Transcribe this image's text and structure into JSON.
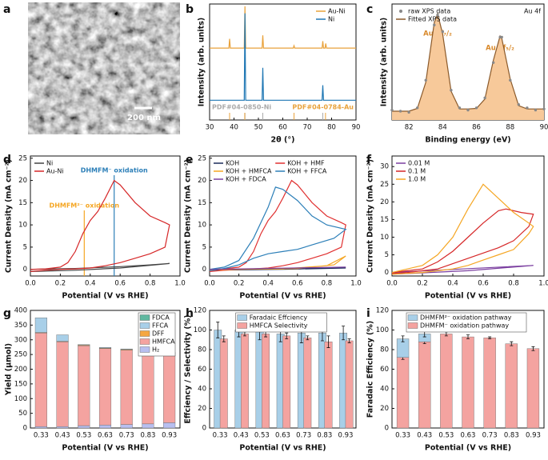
{
  "chart_data": [
    {
      "panel": "a",
      "type": "image",
      "scale_bar": "200 nm"
    },
    {
      "panel": "b",
      "type": "line",
      "xlabel": "2θ (°)",
      "ylabel": "Intensity (arb. units)",
      "xlim": [
        30,
        90
      ],
      "xticks": [
        30,
        40,
        50,
        60,
        70,
        80,
        90
      ],
      "ylim": [
        0,
        100
      ],
      "legend": "upper right",
      "series": [
        {
          "name": "Au-Ni",
          "color": "#e9a23b",
          "x": [
            30,
            37.9,
            38.2,
            38.5,
            44.2,
            44.5,
            44.8,
            51.5,
            51.8,
            52.1,
            64.3,
            64.6,
            64.9,
            76.1,
            76.4,
            76.7,
            77.3,
            77.6,
            77.9,
            90
          ],
          "values": [
            62,
            62,
            70,
            62,
            62,
            98,
            62,
            62,
            73,
            62,
            62,
            64,
            62,
            62,
            68,
            62,
            62,
            66,
            62,
            62
          ]
        },
        {
          "name": "Ni",
          "color": "#1f77b4",
          "x": [
            30,
            44.2,
            44.5,
            44.8,
            51.5,
            51.8,
            52.1,
            76.1,
            76.4,
            76.7,
            90
          ],
          "values": [
            17,
            17,
            92,
            17,
            17,
            45,
            17,
            17,
            30,
            17,
            17
          ]
        }
      ],
      "references": [
        {
          "label": "PDF#04-0850-Ni",
          "color": "#aaaaaa",
          "positions": [
            44.5,
            51.8,
            76.4
          ]
        },
        {
          "label": "PDF#04-0784-Au",
          "color": "#e9a23b",
          "positions": [
            38.2,
            44.4,
            64.6,
            77.5
          ]
        }
      ]
    },
    {
      "panel": "c",
      "type": "line",
      "xlabel": "Binding energy (eV)",
      "ylabel": "Intensity (arb. units)",
      "xlim": [
        81,
        90
      ],
      "xticks": [
        82,
        84,
        86,
        88,
        90
      ],
      "ylim": [
        0,
        105
      ],
      "legend": "upper left",
      "x": [
        81,
        81.5,
        82,
        82.5,
        83,
        83.5,
        83.7,
        84,
        84.5,
        85,
        85.5,
        86,
        86.5,
        87,
        87.4,
        87.5,
        88,
        88.5,
        89,
        89.5,
        90
      ],
      "series": [
        {
          "name": "raw XPS data",
          "type": "scatter",
          "color": "#888888",
          "values": [
            9,
            8,
            7,
            11,
            36,
            86,
            95,
            80,
            27,
            11,
            9,
            11,
            20,
            52,
            75,
            75,
            36,
            14,
            11,
            9,
            10
          ]
        },
        {
          "name": "Fitted XPS data",
          "color": "#8b5a2b",
          "fill": "#f7c99a",
          "values": [
            8,
            8,
            8,
            10.5,
            34,
            88,
            96,
            78,
            26,
            10,
            10,
            10.5,
            19,
            54,
            76,
            74,
            37,
            13,
            10,
            10,
            10
          ]
        }
      ],
      "annotations": [
        "Au 4f",
        "Au 4f₇/₂",
        "Au 4f₅/₂"
      ]
    },
    {
      "panel": "d",
      "type": "line",
      "xlabel": "Potential (V vs RHE)",
      "ylabel": "Current Density (mA cm⁻²)",
      "xlim": [
        0,
        1
      ],
      "xticks": [
        {
          "value": 0,
          "label": "0.0"
        },
        0.2,
        0.4,
        0.6,
        0.8,
        {
          "value": 1,
          "label": "1.0"
        }
      ],
      "ylim": [
        -1.5,
        25.5
      ],
      "yticks": [
        0,
        5,
        10,
        15,
        20,
        25
      ],
      "legend": "upper left",
      "series": [
        {
          "name": "Ni",
          "color": "#444444",
          "x": [
            0,
            0.3,
            0.6,
            0.8,
            0.93,
            0.8,
            0.6,
            0.3,
            0
          ],
          "values": [
            0,
            0.2,
            0.6,
            1,
            1.3,
            0.9,
            0.3,
            -0.2,
            -0.5
          ]
        },
        {
          "name": "Au-Ni",
          "color": "#d62728",
          "x": [
            0,
            0.1,
            0.2,
            0.25,
            0.3,
            0.35,
            0.4,
            0.45,
            0.5,
            0.56,
            0.6,
            0.7,
            0.8,
            0.9,
            0.93,
            0.9,
            0.8,
            0.7,
            0.6,
            0.5,
            0.4,
            0.3,
            0.2,
            0.1,
            0
          ],
          "values": [
            0,
            0.1,
            0.5,
            1.5,
            4,
            8,
            11,
            13,
            16,
            20,
            19,
            15,
            12,
            10.5,
            10,
            5,
            3.5,
            2.5,
            1.5,
            0.8,
            0.3,
            0.1,
            0,
            -0.2,
            -0.5
          ]
        }
      ],
      "vlines": [
        {
          "text": "DHMFM²⁻ oxidation",
          "x": 0.36,
          "color": "#f5a623"
        },
        {
          "text": "DHMFM⁻ oxidation",
          "x": 0.56,
          "color": "#2c7fb8"
        }
      ]
    },
    {
      "panel": "e",
      "type": "line",
      "xlabel": "Potential (V vs RHE)",
      "ylabel": "Current Density (mA cm⁻²)",
      "xlim": [
        0,
        1
      ],
      "xticks": [
        {
          "value": 0,
          "label": "0.0"
        },
        0.2,
        0.4,
        0.6,
        0.8,
        {
          "value": 1,
          "label": "1.0"
        }
      ],
      "ylim": [
        -1.5,
        25.5
      ],
      "yticks": [
        0,
        5,
        10,
        15,
        20,
        25
      ],
      "legend": "upper left",
      "legend_columns": 2,
      "series": [
        {
          "name": "KOH",
          "color": "#1a2a5a",
          "x": [
            0,
            0.5,
            0.93,
            0.5,
            0
          ],
          "values": [
            0,
            0.1,
            0.3,
            0,
            -0.2
          ]
        },
        {
          "name": "KOH + HMF",
          "color": "#e03030",
          "x": [
            0,
            0.1,
            0.2,
            0.25,
            0.3,
            0.35,
            0.4,
            0.45,
            0.5,
            0.56,
            0.6,
            0.7,
            0.8,
            0.9,
            0.93,
            0.9,
            0.8,
            0.7,
            0.6,
            0.5,
            0.4,
            0.3,
            0.2,
            0.1,
            0
          ],
          "values": [
            0,
            0.1,
            0.5,
            1.5,
            4,
            8,
            11,
            13,
            16,
            20,
            19,
            15,
            12,
            10.5,
            10,
            5,
            3.5,
            2.5,
            1.5,
            0.8,
            0.3,
            0.1,
            0,
            -0.2,
            -0.5
          ]
        },
        {
          "name": "KOH + HMFCA",
          "color": "#f5a623",
          "x": [
            0,
            0.5,
            0.8,
            0.93,
            0.85,
            0.6,
            0
          ],
          "values": [
            0,
            0.1,
            0.8,
            3,
            1,
            0.2,
            -0.1
          ]
        },
        {
          "name": "KOH + FFCA",
          "color": "#2c7fb8",
          "x": [
            0,
            0.1,
            0.2,
            0.3,
            0.4,
            0.45,
            0.5,
            0.6,
            0.7,
            0.8,
            0.93,
            0.85,
            0.7,
            0.6,
            0.5,
            0.4,
            0.3,
            0.2,
            0.1,
            0
          ],
          "values": [
            0,
            0.5,
            2,
            7,
            14,
            18.5,
            18,
            15.5,
            12,
            10,
            9,
            7,
            5.5,
            4.5,
            4,
            3.5,
            2.5,
            1,
            0.2,
            -0.3
          ]
        },
        {
          "name": "KOH + FDCA",
          "color": "#7b3fa0",
          "x": [
            0,
            0.93,
            0
          ],
          "values": [
            0,
            0.5,
            0
          ]
        }
      ]
    },
    {
      "panel": "f",
      "type": "line",
      "xlabel": "Potential (V vs RHE)",
      "ylabel": "Current Density (mA cm⁻²)",
      "xlim": [
        0,
        1
      ],
      "xticks": [
        {
          "value": 0,
          "label": "0.0"
        },
        0.2,
        0.4,
        0.6,
        0.8,
        {
          "value": 1,
          "label": "1.0"
        }
      ],
      "ylim": [
        -1,
        33
      ],
      "yticks": [
        0,
        5,
        10,
        15,
        20,
        25,
        30
      ],
      "legend": "upper left",
      "series": [
        {
          "name": "0.01 M",
          "color": "#7b3fa0",
          "x": [
            0,
            0.93,
            0.5,
            0
          ],
          "values": [
            0,
            2,
            0.5,
            -0.5
          ]
        },
        {
          "name": "0.1 M",
          "color": "#d62728",
          "x": [
            0,
            0.2,
            0.3,
            0.4,
            0.5,
            0.6,
            0.7,
            0.75,
            0.85,
            0.93,
            0.9,
            0.8,
            0.7,
            0.6,
            0.5,
            0.4,
            0.3,
            0.1,
            0
          ],
          "values": [
            0,
            1,
            3,
            6,
            10,
            14,
            17.5,
            18,
            17,
            16.5,
            13,
            9,
            7,
            5.5,
            4,
            2.5,
            1,
            0,
            -0.3
          ]
        },
        {
          "name": "1.0 M",
          "color": "#f5a623",
          "x": [
            0,
            0.2,
            0.3,
            0.4,
            0.5,
            0.6,
            0.7,
            0.8,
            0.9,
            0.93,
            0.9,
            0.8,
            0.7,
            0.6,
            0.5,
            0.4,
            0.2,
            0
          ],
          "values": [
            0,
            2,
            5,
            10,
            18,
            25,
            21,
            17,
            14,
            13,
            11,
            6.5,
            5,
            3.5,
            2,
            1,
            0,
            -0.5
          ]
        }
      ]
    },
    {
      "panel": "g",
      "type": "bar",
      "stacked": true,
      "xlabel": "Potential (V vs RHE)",
      "ylabel": "Yield (μmol)",
      "categories": [
        "0.33",
        "0.43",
        "0.53",
        "0.63",
        "0.73",
        "0.83",
        "0.93"
      ],
      "ylim": [
        0,
        400
      ],
      "yticks": [
        0,
        50,
        100,
        150,
        200,
        250,
        300,
        350,
        400
      ],
      "legend": "upper right",
      "legend_reversed": true,
      "legend_frame": true,
      "series": [
        {
          "name": "H₂",
          "color": "#b8bff0",
          "values": [
            5,
            5,
            8,
            10,
            12,
            14,
            18
          ]
        },
        {
          "name": "HMFCA",
          "color": "#f4a3a0",
          "values": [
            318,
            288,
            272,
            260,
            253,
            252,
            236
          ]
        },
        {
          "name": "DFF",
          "color": "#f5a742",
          "values": [
            2,
            2,
            2,
            2,
            2,
            1,
            1
          ]
        },
        {
          "name": "FFCA",
          "color": "#a8cfe8",
          "values": [
            50,
            22,
            2,
            2,
            2,
            1,
            1
          ]
        },
        {
          "name": "FDCA",
          "color": "#5fb8a0",
          "values": [
            0,
            0,
            0,
            0,
            0,
            1,
            1
          ]
        }
      ]
    },
    {
      "panel": "h",
      "type": "bar",
      "stacked": false,
      "xlabel": "Potential (V vs RHE)",
      "ylabel": "Effciency / Selectivity (%)",
      "categories": [
        "0.33",
        "0.43",
        "0.53",
        "0.63",
        "0.73",
        "0.83",
        "0.93"
      ],
      "ylim": [
        0,
        120
      ],
      "yticks": [
        0,
        20,
        40,
        60,
        80,
        100,
        120
      ],
      "legend": "upper center",
      "legend_frame": true,
      "series": [
        {
          "name": "Faradaic Effciency",
          "color": "#a8cfe8",
          "values": [
            100,
            100,
            98,
            96,
            97,
            97,
            97
          ],
          "errors": [
            8,
            7,
            8,
            8,
            10,
            8,
            7
          ]
        },
        {
          "name": "HMFCA Selectivity",
          "color": "#f4a3a0",
          "values": [
            91,
            96,
            96,
            94,
            92,
            88,
            89
          ],
          "errors": [
            3,
            2,
            3,
            3,
            2,
            6,
            2
          ]
        }
      ]
    },
    {
      "panel": "i",
      "type": "bar",
      "stacked": true,
      "xlabel": "Potential (V vs RHE)",
      "ylabel": "Faradaic Efficiency (%)",
      "categories": [
        "0.33",
        "0.43",
        "0.53",
        "0.63",
        "0.73",
        "0.83",
        "0.93"
      ],
      "ylim": [
        0,
        120
      ],
      "yticks": [
        0,
        20,
        40,
        60,
        80,
        100,
        120
      ],
      "legend": "upper center",
      "legend_reversed": true,
      "legend_frame": true,
      "series": [
        {
          "name": "DHMFM⁻ oxidation pathway",
          "color": "#f4a3a0",
          "values": [
            72,
            88,
            96,
            93,
            92,
            86,
            81
          ],
          "errors": [
            2,
            2,
            2,
            2,
            1,
            2,
            2
          ]
        },
        {
          "name": "DHMFM²⁻ oxidation pathway",
          "color": "#a8cfe8",
          "values": [
            19,
            8,
            0,
            0,
            0,
            0,
            0
          ],
          "errors": [
            3,
            3,
            0,
            0,
            0,
            0,
            0
          ]
        }
      ]
    }
  ]
}
